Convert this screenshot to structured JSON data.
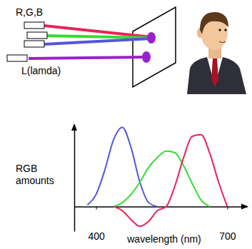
{
  "chart_data": {
    "type": "line",
    "annotations": [
      "R,G,B",
      "L(lamda)"
    ],
    "ylabel": "RGB amounts",
    "xlabel": "wavelength (nm)",
    "x": [
      360,
      380,
      400,
      420,
      440,
      460,
      480,
      500,
      520,
      540,
      560,
      580,
      600,
      620,
      640,
      660,
      680,
      700,
      720
    ],
    "series": [
      {
        "color": "#5555dd",
        "values": [
          null,
          0.02,
          0.15,
          0.45,
          0.82,
          0.97,
          0.72,
          0.3,
          0.05,
          0.0,
          null,
          null,
          null,
          null,
          null,
          null,
          null,
          null,
          null
        ]
      },
      {
        "color": "#33dd33",
        "values": [
          null,
          null,
          null,
          null,
          0.0,
          0.05,
          0.15,
          0.3,
          0.48,
          0.6,
          0.68,
          0.66,
          0.5,
          0.28,
          0.08,
          0.0,
          null,
          null,
          null
        ]
      },
      {
        "color": "#e8245a",
        "values": [
          null,
          null,
          null,
          null,
          0.0,
          -0.05,
          -0.16,
          -0.24,
          -0.18,
          -0.05,
          0.0,
          0.25,
          0.6,
          0.86,
          0.88,
          0.65,
          0.3,
          0.0,
          null
        ]
      }
    ],
    "xlim": [
      350,
      745
    ],
    "ylim": [
      -0.3,
      1.0
    ],
    "xticks": [
      400,
      700
    ],
    "tick_labels": "x",
    "grid": false
  }
}
